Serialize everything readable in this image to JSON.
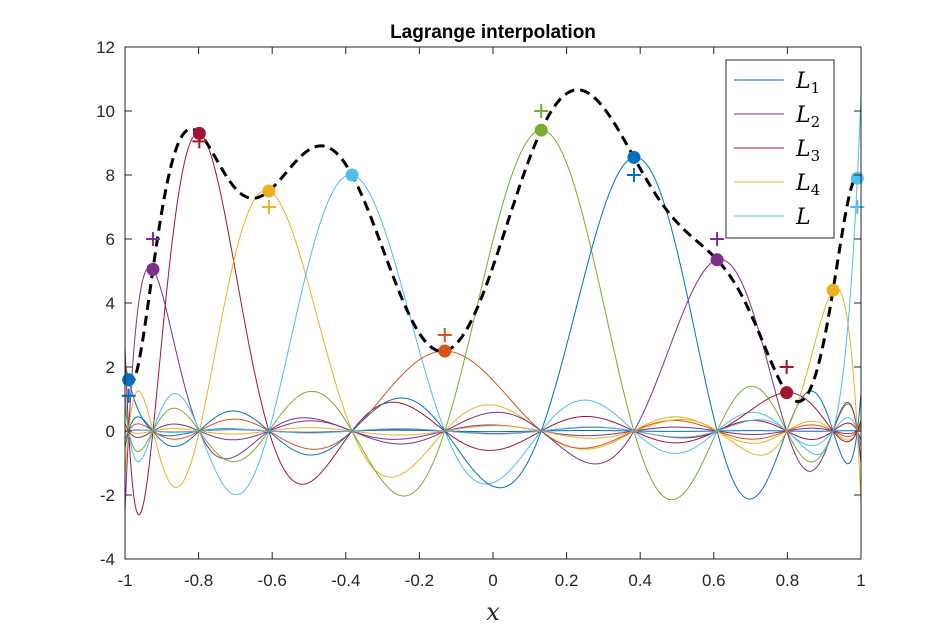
{
  "chart_data": {
    "type": "line",
    "title": "Lagrange interpolation",
    "xlabel": "x",
    "ylabel": "",
    "xlim": [
      -1,
      1
    ],
    "ylim": [
      -4,
      12
    ],
    "xticks": [
      -1,
      -0.8,
      -0.6,
      -0.4,
      -0.2,
      0,
      0.2,
      0.4,
      0.6,
      0.8,
      1
    ],
    "xtick_labels": [
      "-1",
      "-0.8",
      "-0.6",
      "-0.4",
      "-0.2",
      "0",
      "0.2",
      "0.4",
      "0.6",
      "0.8",
      "1"
    ],
    "yticks": [
      -4,
      -2,
      0,
      2,
      4,
      6,
      8,
      10,
      12
    ],
    "ytick_labels": [
      "-4",
      "-2",
      "0",
      "2",
      "4",
      "6",
      "8",
      "10",
      "12"
    ],
    "grid": false,
    "legend_position": "top-right",
    "legend": [
      {
        "base": "L",
        "sub": "1",
        "color": "#0072BD"
      },
      {
        "base": "L",
        "sub": "2",
        "color": "#7E2F8E"
      },
      {
        "base": "L",
        "sub": "3",
        "color": "#A2142F"
      },
      {
        "base": "L",
        "sub": "4",
        "color": "#EDB120"
      },
      {
        "base": "L",
        "sub": "",
        "color": "#4DBEEE"
      }
    ],
    "palette": [
      "#0072BD",
      "#7E2F8E",
      "#A2142F",
      "#EDB120",
      "#4DBEEE",
      "#D95319",
      "#77AC30"
    ],
    "interpolant_color": "#000000",
    "nodes_x": [
      -0.99,
      -0.924,
      -0.798,
      -0.609,
      -0.383,
      -0.131,
      0.131,
      0.383,
      0.609,
      0.798,
      0.924,
      0.99
    ],
    "nodes_y": [
      1.6,
      5.05,
      9.3,
      7.5,
      8.0,
      2.5,
      9.4,
      8.55,
      5.35,
      1.2,
      4.4,
      7.9
    ],
    "data_x": [
      -0.99,
      -0.924,
      -0.798,
      -0.609,
      -0.131,
      0.131,
      0.383,
      0.609,
      0.798,
      0.99
    ],
    "data_y": [
      1.1,
      6.0,
      9.05,
      7.0,
      3.0,
      10.0,
      8.0,
      6.0,
      2.0,
      7.0
    ],
    "data_colors": [
      "#0072BD",
      "#7E2F8E",
      "#A2142F",
      "#EDB120",
      "#D95319",
      "#77AC30",
      "#0072BD",
      "#7E2F8E",
      "#A2142F",
      "#4DBEEE"
    ]
  }
}
